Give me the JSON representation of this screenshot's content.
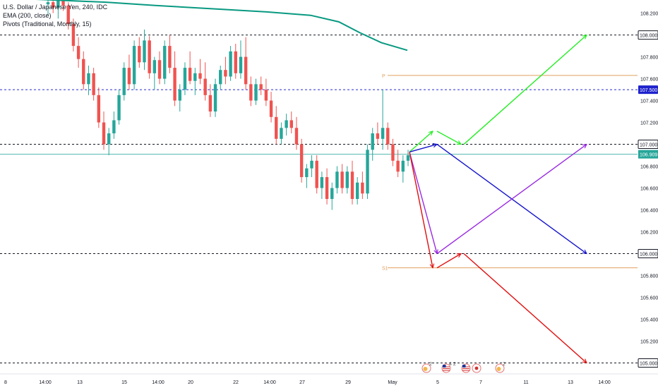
{
  "legend": {
    "symbol_line": "U.S. Dollar / Japanese Yen, 240, IDC",
    "ema_line": "EMA (200, close)",
    "pivots_line": "Pivots (Traditional, Monthly, 15)"
  },
  "colors": {
    "up": "#26a69a",
    "down": "#ef5350",
    "ema": "#089981",
    "pivot_level": "#e0a060",
    "current_price": "#26a69a",
    "arrow_green": "#22ee22",
    "arrow_blue": "#1515cc",
    "arrow_purple": "#9a2be2",
    "arrow_red": "#e01010",
    "dashed_black": "#131722",
    "dashed_blue": "#2a2ad0"
  },
  "chart_data": {
    "type": "candlestick",
    "y_axis": {
      "min": 104.9,
      "max": 108.32,
      "ticks": [
        "108.200",
        "108.000",
        "107.800",
        "107.600",
        "107.400",
        "107.200",
        "107.000",
        "106.800",
        "106.600",
        "106.400",
        "106.200",
        "106.000",
        "105.800",
        "105.600",
        "105.400",
        "105.200",
        "105.000"
      ]
    },
    "x_axis": {
      "labels": [
        "8",
        "14:00",
        "13",
        "15",
        "14:00",
        "20",
        "22",
        "14:00",
        "27",
        "29",
        "May",
        "5",
        "7",
        "11",
        "13",
        "14:00"
      ]
    },
    "horizontal_levels": [
      {
        "label": "108.000",
        "price": 108.0,
        "style": "dashed-black"
      },
      {
        "label": "107.500",
        "price": 107.5,
        "style": "dashed-blue",
        "highlight": true
      },
      {
        "label": "107.000",
        "price": 107.0,
        "style": "dashed-black"
      },
      {
        "label": "106.000",
        "price": 106.0,
        "style": "dashed-black"
      },
      {
        "label": "105.000",
        "price": 105.0,
        "style": "dashed-black"
      }
    ],
    "current_price": {
      "label": "106.909",
      "price": 106.909
    },
    "pivots": [
      {
        "label": "P",
        "price": 107.63
      },
      {
        "label": "S1",
        "price": 105.87
      }
    ],
    "candles": [
      [
        108.28,
        108.35,
        108.18,
        108.3
      ],
      [
        108.3,
        108.4,
        108.2,
        108.25
      ],
      [
        108.25,
        108.35,
        108.15,
        108.32
      ],
      [
        108.32,
        108.38,
        108.22,
        108.27
      ],
      [
        108.27,
        108.3,
        108.05,
        108.1
      ],
      [
        108.1,
        108.15,
        107.85,
        107.9
      ],
      [
        107.9,
        107.98,
        107.7,
        107.78
      ],
      [
        107.78,
        107.85,
        107.5,
        107.55
      ],
      [
        107.55,
        107.72,
        107.45,
        107.65
      ],
      [
        107.65,
        107.7,
        107.4,
        107.45
      ],
      [
        107.45,
        107.52,
        107.15,
        107.2
      ],
      [
        107.2,
        107.3,
        106.95,
        107.0
      ],
      [
        107.0,
        107.15,
        106.9,
        107.1
      ],
      [
        107.1,
        107.3,
        107.05,
        107.22
      ],
      [
        107.22,
        107.5,
        107.18,
        107.45
      ],
      [
        107.45,
        107.75,
        107.4,
        107.7
      ],
      [
        107.7,
        107.82,
        107.5,
        107.55
      ],
      [
        107.55,
        107.95,
        107.5,
        107.9
      ],
      [
        107.9,
        107.98,
        107.7,
        107.75
      ],
      [
        107.75,
        108.05,
        107.68,
        107.95
      ],
      [
        107.95,
        107.99,
        107.6,
        107.65
      ],
      [
        107.65,
        107.8,
        107.5,
        107.77
      ],
      [
        107.77,
        107.85,
        107.55,
        107.6
      ],
      [
        107.6,
        107.95,
        107.55,
        107.9
      ],
      [
        107.9,
        108.0,
        107.65,
        107.7
      ],
      [
        107.7,
        107.85,
        107.35,
        107.4
      ],
      [
        107.4,
        107.55,
        107.3,
        107.5
      ],
      [
        107.5,
        107.75,
        107.45,
        107.7
      ],
      [
        107.7,
        107.85,
        107.55,
        107.58
      ],
      [
        107.58,
        107.7,
        107.45,
        107.65
      ],
      [
        107.65,
        107.78,
        107.55,
        107.6
      ],
      [
        107.6,
        107.75,
        107.4,
        107.45
      ],
      [
        107.45,
        107.55,
        107.25,
        107.3
      ],
      [
        107.3,
        107.6,
        107.25,
        107.55
      ],
      [
        107.55,
        107.72,
        107.5,
        107.68
      ],
      [
        107.68,
        107.8,
        107.55,
        107.62
      ],
      [
        107.62,
        107.9,
        107.58,
        107.85
      ],
      [
        107.85,
        107.92,
        107.6,
        107.65
      ],
      [
        107.65,
        107.95,
        107.6,
        107.8
      ],
      [
        107.8,
        107.98,
        107.5,
        107.55
      ],
      [
        107.55,
        107.62,
        107.35,
        107.4
      ],
      [
        107.4,
        107.6,
        107.36,
        107.55
      ],
      [
        107.55,
        107.62,
        107.45,
        107.5
      ],
      [
        107.5,
        107.6,
        107.35,
        107.4
      ],
      [
        107.4,
        107.48,
        107.2,
        107.25
      ],
      [
        107.25,
        107.35,
        107.0,
        107.05
      ],
      [
        107.05,
        107.2,
        107.0,
        107.15
      ],
      [
        107.15,
        107.28,
        107.08,
        107.22
      ],
      [
        107.22,
        107.3,
        107.1,
        107.15
      ],
      [
        107.15,
        107.25,
        106.95,
        107.0
      ],
      [
        107.0,
        107.05,
        106.65,
        106.7
      ],
      [
        106.7,
        106.82,
        106.6,
        106.78
      ],
      [
        106.78,
        106.9,
        106.7,
        106.85
      ],
      [
        106.85,
        106.9,
        106.55,
        106.6
      ],
      [
        106.6,
        106.75,
        106.5,
        106.7
      ],
      [
        106.7,
        106.78,
        106.45,
        106.5
      ],
      [
        106.5,
        106.65,
        106.4,
        106.6
      ],
      [
        106.6,
        106.8,
        106.55,
        106.75
      ],
      [
        106.75,
        106.82,
        106.55,
        106.6
      ],
      [
        106.6,
        106.8,
        106.55,
        106.75
      ],
      [
        106.75,
        106.85,
        106.45,
        106.5
      ],
      [
        106.5,
        106.7,
        106.45,
        106.65
      ],
      [
        106.65,
        106.75,
        106.5,
        106.55
      ],
      [
        106.55,
        107.0,
        106.5,
        106.95
      ],
      [
        106.95,
        107.15,
        106.85,
        107.1
      ],
      [
        107.1,
        107.2,
        107.0,
        107.05
      ],
      [
        107.05,
        107.5,
        106.95,
        107.15
      ],
      [
        107.15,
        107.2,
        106.95,
        107.0
      ],
      [
        107.0,
        107.05,
        106.8,
        106.85
      ],
      [
        106.85,
        106.95,
        106.7,
        106.75
      ],
      [
        106.75,
        106.9,
        106.65,
        106.85
      ],
      [
        106.85,
        106.95,
        106.8,
        106.9
      ]
    ],
    "ema": [
      [
        0,
        108.34
      ],
      [
        150,
        108.3
      ],
      [
        220,
        108.27
      ],
      [
        300,
        108.24
      ],
      [
        380,
        108.21
      ],
      [
        440,
        108.18
      ],
      [
        480,
        108.12
      ],
      [
        510,
        108.02
      ],
      [
        540,
        107.93
      ],
      [
        577,
        107.86
      ]
    ],
    "projection_arrows": [
      {
        "name": "green-arrow-1",
        "color": "green",
        "points": [
          [
            580,
            106.93
          ],
          [
            613,
            107.12
          ]
        ]
      },
      {
        "name": "green-arrow-2",
        "color": "green",
        "points": [
          [
            619,
            107.12
          ],
          [
            653,
            107.0
          ]
        ]
      },
      {
        "name": "green-arrow-3",
        "color": "green",
        "points": [
          [
            657,
            107.0
          ],
          [
            831,
            108.0
          ]
        ]
      },
      {
        "name": "blue-arrow-1",
        "color": "blue",
        "points": [
          [
            580,
            106.93
          ],
          [
            619,
            107.0
          ]
        ]
      },
      {
        "name": "blue-arrow-2",
        "color": "blue",
        "points": [
          [
            619,
            107.0
          ],
          [
            831,
            106.0
          ]
        ]
      },
      {
        "name": "purple-arrow-1",
        "color": "purple",
        "points": [
          [
            580,
            106.93
          ],
          [
            619,
            106.0
          ]
        ]
      },
      {
        "name": "purple-arrow-2",
        "color": "purple",
        "points": [
          [
            619,
            106.0
          ],
          [
            831,
            107.0
          ]
        ]
      },
      {
        "name": "red-arrow-1",
        "color": "red",
        "points": [
          [
            580,
            106.93
          ],
          [
            613,
            105.87
          ]
        ]
      },
      {
        "name": "red-arrow-2",
        "color": "red",
        "points": [
          [
            619,
            105.87
          ],
          [
            653,
            106.0
          ]
        ]
      },
      {
        "name": "red-arrow-3",
        "color": "red",
        "points": [
          [
            657,
            106.0
          ],
          [
            831,
            105.0
          ]
        ]
      }
    ]
  },
  "events": [
    {
      "icon": "globe-icon",
      "badge": "2"
    },
    {
      "icon": "us-flag-icon",
      "badge": "4 2"
    },
    {
      "icon": "us-flag-icon",
      "badge": ""
    },
    {
      "icon": "jp-flag-icon",
      "badge": ""
    },
    {
      "icon": "globe-icon",
      "badge": "2"
    }
  ]
}
